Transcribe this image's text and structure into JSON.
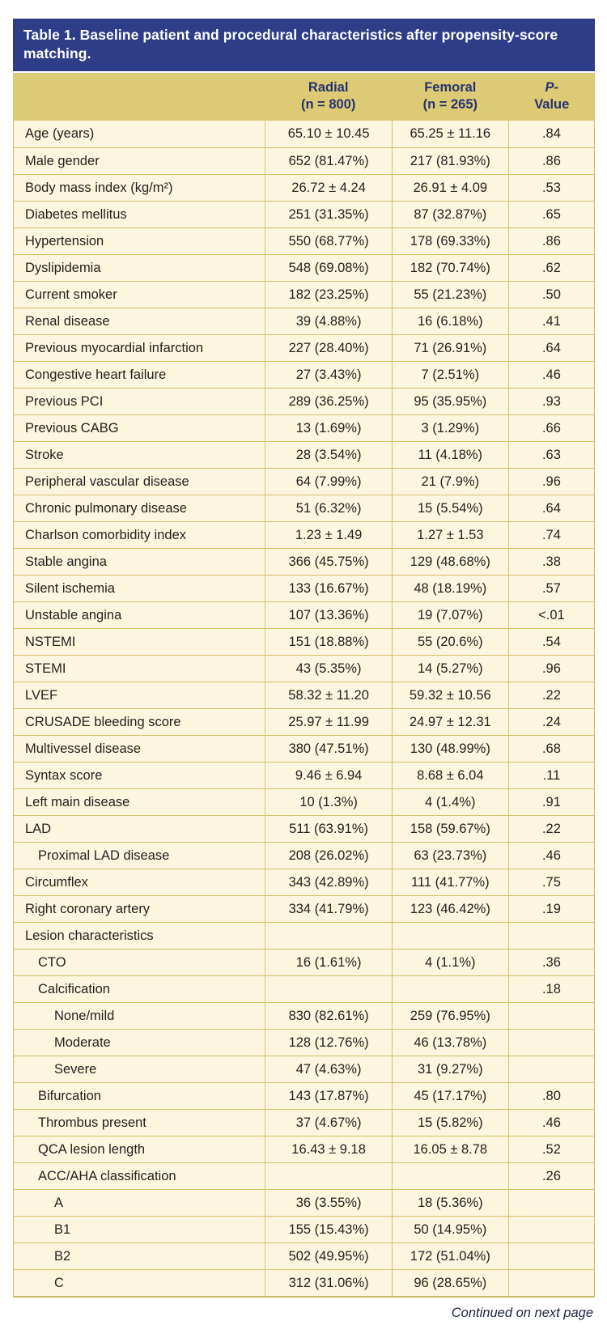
{
  "table": {
    "title": "Table 1. Baseline patient and procedural characteristics after propensity-score matching.",
    "columns": {
      "radial": {
        "name": "Radial",
        "n": "(n = 800)"
      },
      "femoral": {
        "name": "Femoral",
        "n": "(n = 265)"
      },
      "p": {
        "italic": "P",
        "dash": "-",
        "line2": "Value"
      }
    },
    "rows": [
      {
        "label": "Age (years)",
        "indent": 0,
        "radial": "65.10 ± 10.45",
        "femoral": "65.25 ± 11.16",
        "p": ".84"
      },
      {
        "label": "Male gender",
        "indent": 0,
        "radial": "652 (81.47%)",
        "femoral": "217 (81.93%)",
        "p": ".86"
      },
      {
        "label": "Body mass index (kg/m²)",
        "indent": 0,
        "radial": "26.72 ± 4.24",
        "femoral": "26.91 ± 4.09",
        "p": ".53"
      },
      {
        "label": "Diabetes mellitus",
        "indent": 0,
        "radial": "251 (31.35%)",
        "femoral": "87 (32.87%)",
        "p": ".65"
      },
      {
        "label": "Hypertension",
        "indent": 0,
        "radial": "550 (68.77%)",
        "femoral": "178 (69.33%)",
        "p": ".86"
      },
      {
        "label": "Dyslipidemia",
        "indent": 0,
        "radial": "548 (69.08%)",
        "femoral": "182 (70.74%)",
        "p": ".62"
      },
      {
        "label": "Current smoker",
        "indent": 0,
        "radial": "182 (23.25%)",
        "femoral": "55 (21.23%)",
        "p": ".50"
      },
      {
        "label": "Renal disease",
        "indent": 0,
        "radial": "39 (4.88%)",
        "femoral": "16 (6.18%)",
        "p": ".41"
      },
      {
        "label": "Previous myocardial infarction",
        "indent": 0,
        "radial": "227 (28.40%)",
        "femoral": "71 (26.91%)",
        "p": ".64"
      },
      {
        "label": "Congestive heart failure",
        "indent": 0,
        "radial": "27 (3.43%)",
        "femoral": "7 (2.51%)",
        "p": ".46"
      },
      {
        "label": "Previous PCI",
        "indent": 0,
        "radial": "289 (36.25%)",
        "femoral": "95 (35.95%)",
        "p": ".93"
      },
      {
        "label": "Previous CABG",
        "indent": 0,
        "radial": "13 (1.69%)",
        "femoral": "3 (1.29%)",
        "p": ".66"
      },
      {
        "label": "Stroke",
        "indent": 0,
        "radial": "28 (3.54%)",
        "femoral": "11 (4.18%)",
        "p": ".63"
      },
      {
        "label": "Peripheral vascular disease",
        "indent": 0,
        "radial": "64 (7.99%)",
        "femoral": "21 (7.9%)",
        "p": ".96"
      },
      {
        "label": "Chronic pulmonary disease",
        "indent": 0,
        "radial": "51 (6.32%)",
        "femoral": "15 (5.54%)",
        "p": ".64"
      },
      {
        "label": "Charlson comorbidity index",
        "indent": 0,
        "radial": "1.23 ± 1.49",
        "femoral": "1.27 ± 1.53",
        "p": ".74"
      },
      {
        "label": "Stable angina",
        "indent": 0,
        "radial": "366 (45.75%)",
        "femoral": "129 (48.68%)",
        "p": ".38"
      },
      {
        "label": "Silent ischemia",
        "indent": 0,
        "radial": "133 (16.67%)",
        "femoral": "48 (18.19%)",
        "p": ".57"
      },
      {
        "label": "Unstable angina",
        "indent": 0,
        "radial": "107 (13.36%)",
        "femoral": "19 (7.07%)",
        "p": "<.01"
      },
      {
        "label": "NSTEMI",
        "indent": 0,
        "radial": "151 (18.88%)",
        "femoral": "55 (20.6%)",
        "p": ".54"
      },
      {
        "label": "STEMI",
        "indent": 0,
        "radial": "43 (5.35%)",
        "femoral": "14 (5.27%)",
        "p": ".96"
      },
      {
        "label": "LVEF",
        "indent": 0,
        "radial": "58.32 ± 11.20",
        "femoral": "59.32 ± 10.56",
        "p": ".22"
      },
      {
        "label": "CRUSADE bleeding score",
        "indent": 0,
        "radial": "25.97 ± 11.99",
        "femoral": "24.97 ± 12.31",
        "p": ".24"
      },
      {
        "label": "Multivessel disease",
        "indent": 0,
        "radial": "380 (47.51%)",
        "femoral": "130 (48.99%)",
        "p": ".68"
      },
      {
        "label": "Syntax score",
        "indent": 0,
        "radial": "9.46 ± 6.94",
        "femoral": "8.68 ± 6.04",
        "p": ".11"
      },
      {
        "label": "Left main disease",
        "indent": 0,
        "radial": "10 (1.3%)",
        "femoral": "4 (1.4%)",
        "p": ".91"
      },
      {
        "label": "LAD",
        "indent": 0,
        "radial": "511 (63.91%)",
        "femoral": "158 (59.67%)",
        "p": ".22"
      },
      {
        "label": "Proximal LAD disease",
        "indent": 1,
        "radial": "208 (26.02%)",
        "femoral": "63 (23.73%)",
        "p": ".46"
      },
      {
        "label": "Circumflex",
        "indent": 0,
        "radial": "343 (42.89%)",
        "femoral": "111 (41.77%)",
        "p": ".75"
      },
      {
        "label": "Right coronary artery",
        "indent": 0,
        "radial": "334 (41.79%)",
        "femoral": "123 (46.42%)",
        "p": ".19"
      },
      {
        "label": "Lesion characteristics",
        "indent": 0,
        "radial": "",
        "femoral": "",
        "p": ""
      },
      {
        "label": "CTO",
        "indent": 1,
        "radial": "16 (1.61%)",
        "femoral": "4 (1.1%)",
        "p": ".36"
      },
      {
        "label": "Calcification",
        "indent": 1,
        "radial": "",
        "femoral": "",
        "p": ".18"
      },
      {
        "label": "None/mild",
        "indent": 2,
        "radial": "830 (82.61%)",
        "femoral": "259 (76.95%)",
        "p": ""
      },
      {
        "label": "Moderate",
        "indent": 2,
        "radial": "128 (12.76%)",
        "femoral": "46 (13.78%)",
        "p": ""
      },
      {
        "label": "Severe",
        "indent": 2,
        "radial": "47 (4.63%)",
        "femoral": "31 (9.27%)",
        "p": ""
      },
      {
        "label": "Bifurcation",
        "indent": 1,
        "radial": "143 (17.87%)",
        "femoral": "45 (17.17%)",
        "p": ".80"
      },
      {
        "label": "Thrombus present",
        "indent": 1,
        "radial": "37 (4.67%)",
        "femoral": "15 (5.82%)",
        "p": ".46"
      },
      {
        "label": "QCA lesion length",
        "indent": 1,
        "radial": "16.43 ± 9.18",
        "femoral": "16.05 ± 8.78",
        "p": ".52"
      },
      {
        "label": "ACC/AHA classification",
        "indent": 1,
        "radial": "",
        "femoral": "",
        "p": ".26"
      },
      {
        "label": "A",
        "indent": 2,
        "radial": "36 (3.55%)",
        "femoral": "18 (5.36%)",
        "p": ""
      },
      {
        "label": "B1",
        "indent": 2,
        "radial": "155 (15.43%)",
        "femoral": "50 (14.95%)",
        "p": ""
      },
      {
        "label": "B2",
        "indent": 2,
        "radial": "502 (49.95%)",
        "femoral": "172 (51.04%)",
        "p": ""
      },
      {
        "label": "C",
        "indent": 2,
        "radial": "312 (31.06%)",
        "femoral": "96 (28.65%)",
        "p": ""
      }
    ],
    "continued_note": "Continued on next page"
  },
  "colors": {
    "title_bar_bg": "#2e3d87",
    "header_bg": "#ddca74",
    "header_text": "#253370",
    "row_bg": "#fdf6df",
    "border_gold": "#cdb962",
    "body_text": "#232120"
  }
}
